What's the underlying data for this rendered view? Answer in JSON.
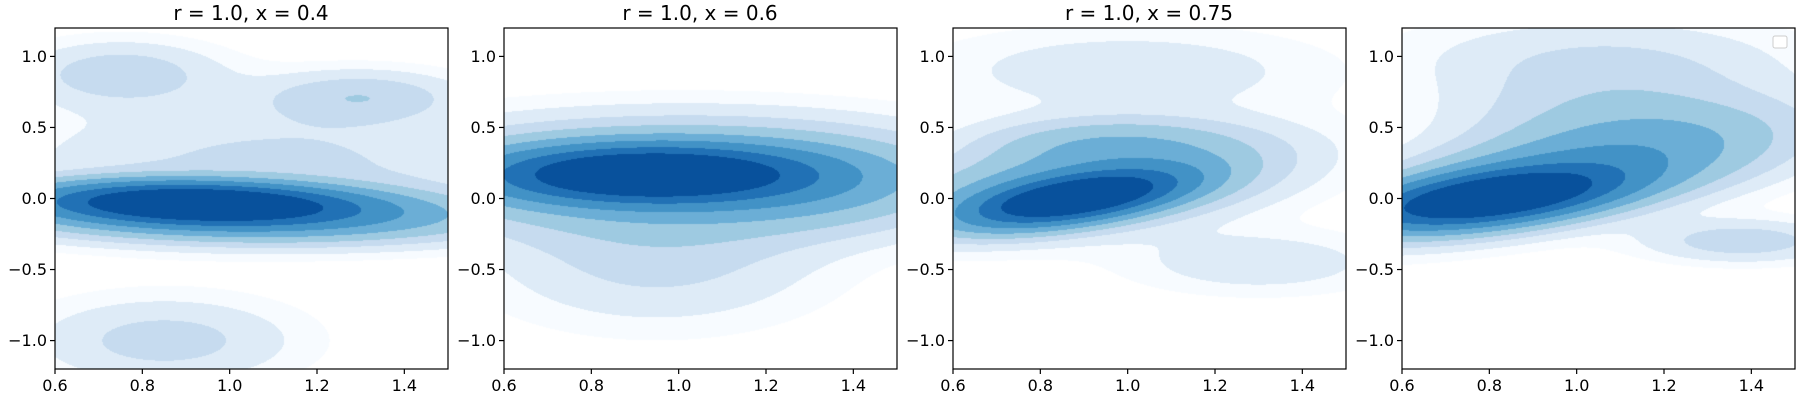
{
  "colors": {
    "cmap": [
      "#f7fbff",
      "#deebf7",
      "#c6dbef",
      "#9ecae1",
      "#6baed6",
      "#4292c6",
      "#2171b5",
      "#08519c"
    ],
    "axis": "#000000",
    "background": "#ffffff"
  },
  "chart_data": [
    {
      "type": "heatmap",
      "subtype": "kde-filled-contour",
      "title": "r = 1.0, x = 0.4",
      "xlim": [
        0.6,
        1.5
      ],
      "ylim": [
        -1.2,
        1.2
      ],
      "x_ticks": [
        0.6,
        0.8,
        1.0,
        1.2,
        1.4
      ],
      "x_tick_labels": [
        "0.6",
        "0.8",
        "1.0",
        "1.2",
        "1.4"
      ],
      "y_ticks": [
        -1.0,
        -0.5,
        0.0,
        0.5,
        1.0
      ],
      "y_tick_labels": [
        "−1.0",
        "−0.5",
        "0.0",
        "0.5",
        "1.0"
      ],
      "grid": false,
      "legend": false,
      "density_components": [
        {
          "x": 0.92,
          "y": -0.03,
          "sx": 0.22,
          "sy": 0.09,
          "rho": -0.15,
          "weight": 1.0
        },
        {
          "x": 1.05,
          "y": -0.12,
          "sx": 0.35,
          "sy": 0.12,
          "rho": -0.1,
          "weight": 0.35
        },
        {
          "x": 0.75,
          "y": 0.88,
          "sx": 0.15,
          "sy": 0.15,
          "rho": 0.0,
          "weight": 0.1
        },
        {
          "x": 1.3,
          "y": 0.72,
          "sx": 0.15,
          "sy": 0.12,
          "rho": 0.0,
          "weight": 0.1
        },
        {
          "x": 0.85,
          "y": -1.0,
          "sx": 0.2,
          "sy": 0.2,
          "rho": 0.0,
          "weight": 0.09
        },
        {
          "x": 1.1,
          "y": 0.25,
          "sx": 0.4,
          "sy": 0.3,
          "rho": 0.0,
          "weight": 0.08
        }
      ]
    },
    {
      "type": "heatmap",
      "subtype": "kde-filled-contour",
      "title": "r = 1.0, x = 0.6",
      "xlim": [
        0.6,
        1.5
      ],
      "ylim": [
        -1.2,
        1.2
      ],
      "x_ticks": [
        0.6,
        0.8,
        1.0,
        1.2,
        1.4
      ],
      "x_tick_labels": [
        "0.6",
        "0.8",
        "1.0",
        "1.2",
        "1.4"
      ],
      "y_ticks": [
        -1.0,
        -0.5,
        0.0,
        0.5,
        1.0
      ],
      "y_tick_labels": [
        "−1.0",
        "−0.5",
        "0.0",
        "0.5",
        "1.0"
      ],
      "grid": false,
      "legend": false,
      "density_components": [
        {
          "x": 0.93,
          "y": 0.17,
          "sx": 0.22,
          "sy": 0.12,
          "rho": 0.0,
          "weight": 1.0
        },
        {
          "x": 1.0,
          "y": 0.15,
          "sx": 0.4,
          "sy": 0.25,
          "rho": 0.0,
          "weight": 0.3
        },
        {
          "x": 0.95,
          "y": -0.45,
          "sx": 0.25,
          "sy": 0.3,
          "rho": 0.0,
          "weight": 0.08
        },
        {
          "x": 1.3,
          "y": 0.1,
          "sx": 0.2,
          "sy": 0.2,
          "rho": 0.0,
          "weight": 0.08
        }
      ]
    },
    {
      "type": "heatmap",
      "subtype": "kde-filled-contour",
      "title": "r = 1.0, x = 0.75",
      "xlim": [
        0.6,
        1.5
      ],
      "ylim": [
        -1.2,
        1.2
      ],
      "x_ticks": [
        0.6,
        0.8,
        1.0,
        1.2,
        1.4
      ],
      "x_tick_labels": [
        "0.6",
        "0.8",
        "1.0",
        "1.2",
        "1.4"
      ],
      "y_ticks": [
        -1.0,
        -0.5,
        0.0,
        0.5,
        1.0
      ],
      "y_tick_labels": [
        "−1.0",
        "−0.5",
        "0.0",
        "0.5",
        "1.0"
      ],
      "grid": false,
      "legend": false,
      "density_components": [
        {
          "x": 0.88,
          "y": 0.0,
          "sx": 0.15,
          "sy": 0.12,
          "rho": 0.55,
          "weight": 1.0
        },
        {
          "x": 0.9,
          "y": 0.1,
          "sx": 0.28,
          "sy": 0.22,
          "rho": 0.4,
          "weight": 0.28
        },
        {
          "x": 0.95,
          "y": 0.4,
          "sx": 0.2,
          "sy": 0.12,
          "rho": 0.0,
          "weight": 0.12
        },
        {
          "x": 1.3,
          "y": -0.45,
          "sx": 0.2,
          "sy": 0.15,
          "rho": 0.0,
          "weight": 0.06
        },
        {
          "x": 1.0,
          "y": 0.9,
          "sx": 0.3,
          "sy": 0.2,
          "rho": 0.0,
          "weight": 0.06
        }
      ]
    },
    {
      "type": "heatmap",
      "subtype": "kde-filled-contour",
      "title": "",
      "xlim": [
        0.6,
        1.5
      ],
      "ylim": [
        -1.2,
        1.2
      ],
      "x_ticks": [
        0.6,
        0.8,
        1.0,
        1.2,
        1.4
      ],
      "x_tick_labels": [
        "0.6",
        "0.8",
        "1.0",
        "1.2",
        "1.4"
      ],
      "y_ticks": [
        -1.0,
        -0.5,
        0.0,
        0.5,
        1.0
      ],
      "y_tick_labels": [
        "−1.0",
        "−0.5",
        "0.0",
        "0.5",
        "1.0"
      ],
      "grid": false,
      "legend": true,
      "legend_position": "upper right",
      "legend_entries": [],
      "density_components": [
        {
          "x": 0.8,
          "y": 0.0,
          "sx": 0.18,
          "sy": 0.13,
          "rho": 0.5,
          "weight": 1.0
        },
        {
          "x": 0.95,
          "y": 0.15,
          "sx": 0.3,
          "sy": 0.25,
          "rho": 0.6,
          "weight": 0.32
        },
        {
          "x": 1.1,
          "y": 0.55,
          "sx": 0.25,
          "sy": 0.25,
          "rho": 0.0,
          "weight": 0.12
        },
        {
          "x": 1.38,
          "y": -0.3,
          "sx": 0.15,
          "sy": 0.1,
          "rho": 0.0,
          "weight": 0.1
        },
        {
          "x": 1.05,
          "y": 1.0,
          "sx": 0.3,
          "sy": 0.2,
          "rho": 0.0,
          "weight": 0.06
        }
      ]
    }
  ]
}
